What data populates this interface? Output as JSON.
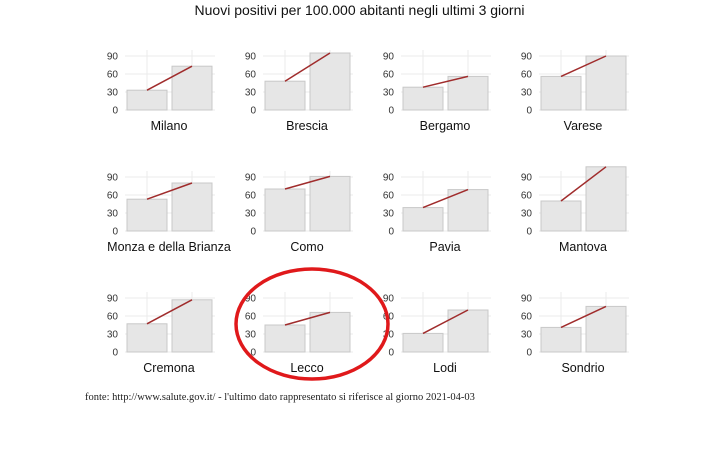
{
  "title": "Nuovi positivi per 100.000 abitanti negli ultimi 3 giorni",
  "source": "fonte: http://www.salute.gov.it/ - l'ultimo dato rappresentato si riferisce al giorno 2021-04-03",
  "colors": {
    "bar_fill": "#e6e6e6",
    "bar_stroke": "#c8c8c8",
    "trend_line": "#a02c2c",
    "grid": "#ebebeb",
    "highlight_circle": "#e0191b"
  },
  "annotation": {
    "type": "ellipse",
    "target": "Lecco",
    "color": "#e0191b"
  },
  "chart_data": {
    "type": "bar",
    "layout": "small-multiples",
    "ylim": [
      0,
      100
    ],
    "yticks": [
      0,
      30,
      60,
      90
    ],
    "grid": true,
    "panels": [
      {
        "name": "Milano",
        "values": [
          33,
          73
        ]
      },
      {
        "name": "Brescia",
        "values": [
          48,
          95
        ]
      },
      {
        "name": "Bergamo",
        "values": [
          38,
          56
        ]
      },
      {
        "name": "Varese",
        "values": [
          56,
          90
        ]
      },
      {
        "name": "Monza e della Brianza",
        "values": [
          53,
          80
        ]
      },
      {
        "name": "Como",
        "values": [
          70,
          91
        ]
      },
      {
        "name": "Pavia",
        "values": [
          39,
          69
        ]
      },
      {
        "name": "Mantova",
        "values": [
          50,
          107
        ]
      },
      {
        "name": "Cremona",
        "values": [
          47,
          87
        ]
      },
      {
        "name": "Lecco",
        "values": [
          45,
          66
        ]
      },
      {
        "name": "Lodi",
        "values": [
          31,
          70
        ]
      },
      {
        "name": "Sondrio",
        "values": [
          41,
          76
        ]
      }
    ]
  }
}
